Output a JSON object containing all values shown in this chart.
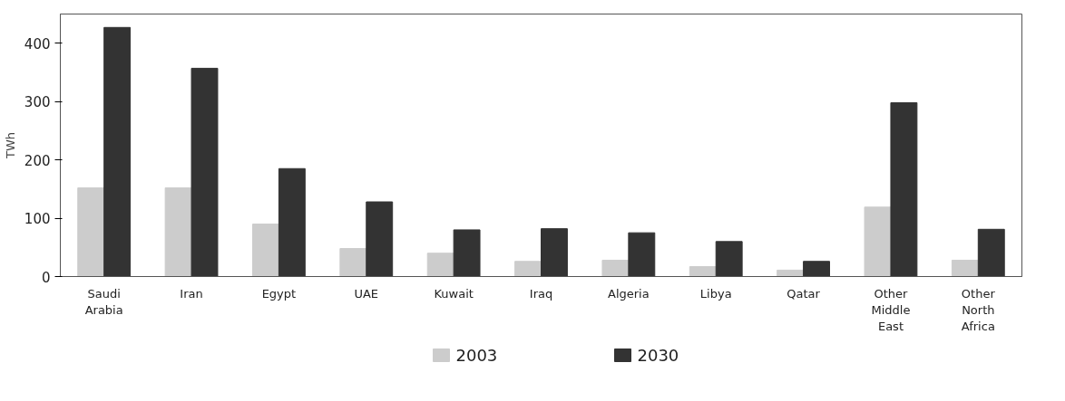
{
  "chart_data": {
    "type": "bar",
    "ylabel": "TWh",
    "categories": [
      "Saudi\nArabia",
      "Iran",
      "Egypt",
      "UAE",
      "Kuwait",
      "Iraq",
      "Algeria",
      "Libya",
      "Qatar",
      "Other\nMiddle\nEast",
      "Other\nNorth\nAfrica"
    ],
    "series": [
      {
        "name": "2003",
        "color": "#cccccc",
        "values": [
          152,
          152,
          90,
          48,
          40,
          26,
          28,
          17,
          11,
          119,
          28
        ]
      },
      {
        "name": "2030",
        "color": "#333333",
        "values": [
          427,
          357,
          185,
          128,
          80,
          82,
          75,
          60,
          26,
          298,
          81
        ]
      }
    ],
    "ylim": [
      0,
      450
    ],
    "yticks": [
      0,
      100,
      200,
      300,
      400
    ],
    "grid": false,
    "legend": "bottom"
  }
}
